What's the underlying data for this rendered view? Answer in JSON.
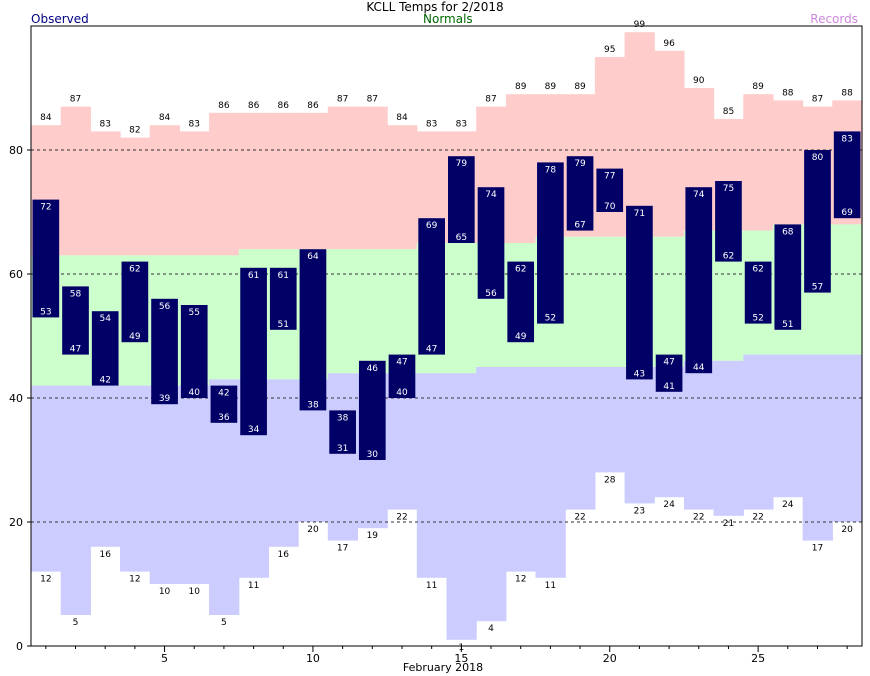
{
  "chart_data": {
    "type": "bar",
    "title": "KCLL Temps for 2/2018",
    "xlabel": "February 2018",
    "ylabel": "",
    "ylim": [
      0,
      100
    ],
    "xlim": [
      0.5,
      28.5
    ],
    "yticks": [
      0,
      20,
      40,
      60,
      80
    ],
    "xticks": [
      5,
      10,
      15,
      20,
      25
    ],
    "grid_y_dashed": [
      20,
      40,
      60,
      80
    ],
    "legend": [
      {
        "name": "Observed",
        "color": "#000080"
      },
      {
        "name": "Normals",
        "color": "#006600"
      },
      {
        "name": "Records",
        "color": "#cc88dd"
      }
    ],
    "colors": {
      "observed": "#000066",
      "record_high_band": "#ffcccc",
      "normal_band": "#ccffcc",
      "record_low_band": "#ccccff",
      "grid": "#333333"
    },
    "days": [
      1,
      2,
      3,
      4,
      5,
      6,
      7,
      8,
      9,
      10,
      11,
      12,
      13,
      14,
      15,
      16,
      17,
      18,
      19,
      20,
      21,
      22,
      23,
      24,
      25,
      26,
      27,
      28
    ],
    "observed_high": [
      72,
      58,
      54,
      62,
      56,
      55,
      42,
      61,
      61,
      64,
      38,
      46,
      47,
      69,
      79,
      74,
      62,
      78,
      79,
      77,
      71,
      47,
      74,
      75,
      62,
      68,
      80,
      83
    ],
    "observed_low": [
      53,
      47,
      42,
      49,
      39,
      40,
      36,
      34,
      51,
      38,
      31,
      30,
      40,
      47,
      65,
      56,
      49,
      52,
      67,
      70,
      43,
      41,
      44,
      62,
      52,
      51,
      57,
      69
    ],
    "normal_high": [
      63,
      63,
      63,
      63,
      63,
      63,
      63,
      64,
      64,
      64,
      64,
      64,
      64,
      65,
      65,
      65,
      65,
      66,
      66,
      66,
      66,
      66,
      67,
      67,
      67,
      68,
      68,
      68
    ],
    "normal_low": [
      42,
      42,
      42,
      42,
      42,
      42,
      43,
      43,
      43,
      43,
      44,
      44,
      44,
      44,
      44,
      45,
      45,
      45,
      45,
      45,
      45,
      45,
      46,
      46,
      47,
      47,
      47,
      47
    ],
    "record_high": [
      84,
      87,
      83,
      82,
      84,
      83,
      86,
      86,
      86,
      86,
      87,
      87,
      84,
      83,
      83,
      87,
      89,
      89,
      89,
      95,
      99,
      96,
      90,
      85,
      89,
      88,
      87,
      88
    ],
    "record_low": [
      12,
      5,
      16,
      12,
      10,
      10,
      5,
      11,
      16,
      20,
      17,
      19,
      22,
      11,
      1,
      4,
      12,
      11,
      22,
      28,
      23,
      24,
      22,
      21,
      22,
      24,
      17,
      20
    ]
  }
}
